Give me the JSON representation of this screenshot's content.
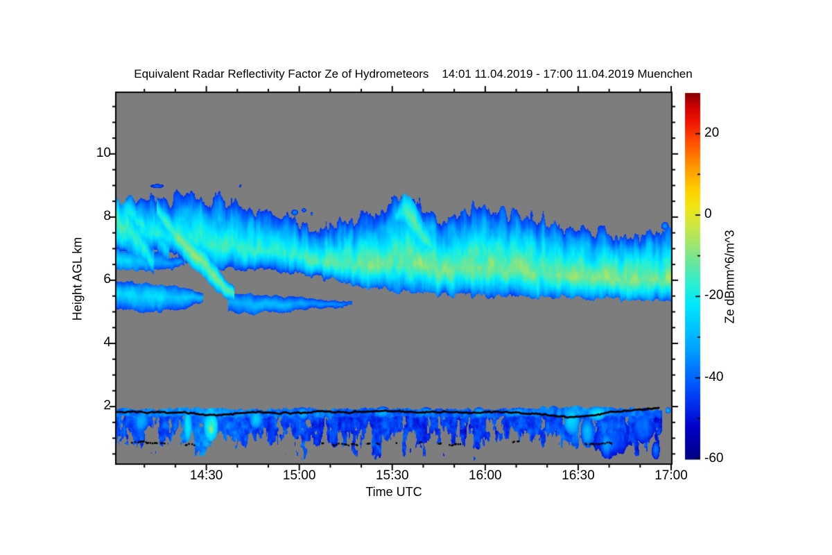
{
  "chart_data": {
    "type": "heatmap",
    "title": "Equivalent Radar Reflectivity Factor Ze of Hydrometeors    14:01 11.04.2019 - 17:00 11.04.2019 Muenchen",
    "station": "Muenchen",
    "date": "11.04.2019",
    "time_start": "14:01",
    "time_end": "17:00",
    "axes": {
      "x": {
        "label": "Time UTC",
        "tick_labels": [
          "14:30",
          "15:00",
          "15:30",
          "16:00",
          "16:30",
          "17:00"
        ],
        "minor_tick_minutes": 10
      },
      "y": {
        "label": "Height AGL km",
        "tick_values": [
          2,
          4,
          6,
          8,
          10
        ],
        "minor_tick_km": 0.5,
        "range_km": [
          0.2,
          11.93
        ]
      },
      "colorbar": {
        "label": "Ze dBmm^6/m^3",
        "tick_values": [
          20,
          0,
          -20,
          -40,
          -60
        ],
        "minor_tick_db": 10,
        "range_db": [
          -60,
          30
        ]
      }
    },
    "colors": {
      "page_bg": "#ffffff",
      "plot_bg": "#7d7d7d",
      "frame": "#000000",
      "text": "#000000",
      "colormap": [
        [
          -60,
          "#000082"
        ],
        [
          -52,
          "#0000c8"
        ],
        [
          -46,
          "#0032f0"
        ],
        [
          -40,
          "#0064ff"
        ],
        [
          -33,
          "#00a0ff"
        ],
        [
          -27,
          "#00c8ff"
        ],
        [
          -22,
          "#00e6ff"
        ],
        [
          -17,
          "#28f0d2"
        ],
        [
          -12,
          "#64e6a0"
        ],
        [
          -7,
          "#a0e66e"
        ],
        [
          -2,
          "#d2e63c"
        ],
        [
          2,
          "#f0e614"
        ],
        [
          6,
          "#ffd200"
        ],
        [
          12,
          "#ff9600"
        ],
        [
          18,
          "#ff5000"
        ],
        [
          23,
          "#f01400"
        ],
        [
          27,
          "#c80000"
        ],
        [
          30,
          "#820000"
        ]
      ]
    },
    "layers": [
      {
        "name": "main-cirrus-band",
        "kind": "band",
        "seed": 11,
        "core_pos": 0.3,
        "fade_up": 36,
        "fade_dn": 30,
        "p": 1.35,
        "vnoise": 8,
        "edge_noise": [
          0.45,
          0.18
        ],
        "nscale": [
          2.2,
          0.55
        ],
        "min": -46,
        "pts": [
          [
            0,
            6.9,
            8.4,
            -19
          ],
          [
            6,
            7.0,
            8.7,
            -19
          ],
          [
            12,
            6.9,
            8.95,
            -19
          ],
          [
            20,
            6.7,
            8.85,
            -18
          ],
          [
            26,
            6.5,
            8.8,
            -15
          ],
          [
            32,
            6.35,
            8.75,
            -15
          ],
          [
            40,
            6.35,
            8.55,
            -16
          ],
          [
            48,
            6.3,
            8.4,
            -17
          ],
          [
            55,
            6.25,
            8.15,
            -17
          ],
          [
            62,
            6.15,
            7.85,
            -15
          ],
          [
            70,
            6.0,
            7.9,
            -13
          ],
          [
            80,
            5.8,
            8.05,
            -12
          ],
          [
            88,
            5.68,
            8.3,
            -11
          ],
          [
            94,
            5.62,
            8.8,
            -10
          ],
          [
            100,
            5.6,
            8.45,
            -11
          ],
          [
            104,
            5.58,
            7.95,
            -12
          ],
          [
            110,
            5.55,
            8.1,
            -11
          ],
          [
            116,
            5.52,
            8.35,
            -10
          ],
          [
            122,
            5.5,
            8.15,
            -11
          ],
          [
            130,
            5.5,
            8.1,
            -10
          ],
          [
            138,
            5.47,
            7.9,
            -11
          ],
          [
            146,
            5.45,
            7.7,
            -10
          ],
          [
            154,
            5.42,
            7.6,
            -10
          ],
          [
            162,
            5.4,
            7.45,
            -9
          ],
          [
            170,
            5.38,
            7.3,
            -9
          ],
          [
            179,
            5.38,
            7.6,
            -9
          ]
        ]
      },
      {
        "name": "spike-streak",
        "kind": "band",
        "seed": 61,
        "core_pos": 0.5,
        "fade_up": 18,
        "fade_dn": 18,
        "p": 1.3,
        "vnoise": 5,
        "edge_noise": [
          0.15,
          0.1
        ],
        "nscale": [
          1.5,
          0.4
        ],
        "min": -44,
        "pts": [
          [
            90,
            7.6,
            8.4,
            -26
          ],
          [
            93,
            7.8,
            8.75,
            -14
          ],
          [
            96,
            7.3,
            8.5,
            -12
          ],
          [
            99,
            6.9,
            7.9,
            -14
          ],
          [
            103,
            6.5,
            7.3,
            -18
          ]
        ]
      },
      {
        "name": "fall-streak",
        "kind": "band",
        "seed": 21,
        "core_pos": 0.5,
        "fade_up": 24,
        "fade_dn": 24,
        "p": 1.4,
        "vnoise": 5,
        "edge_noise": [
          0.15,
          0.12
        ],
        "nscale": [
          1.8,
          0.4
        ],
        "min": -45,
        "pts": [
          [
            13,
            7.9,
            8.6,
            -18
          ],
          [
            18,
            7.1,
            8.0,
            -13
          ],
          [
            23,
            6.55,
            7.5,
            -9
          ],
          [
            28,
            6.1,
            7.0,
            -8
          ],
          [
            32,
            5.7,
            6.5,
            -10
          ],
          [
            35,
            5.45,
            6.05,
            -13
          ],
          [
            38,
            5.35,
            5.75,
            -16
          ]
        ]
      },
      {
        "name": "hook-filament-1",
        "kind": "band",
        "seed": 31,
        "core_pos": 0.45,
        "fade_up": 20,
        "fade_dn": 20,
        "p": 1.3,
        "vnoise": 6,
        "edge_noise": [
          0.25,
          0.2
        ],
        "nscale": [
          1.2,
          0.3
        ],
        "min": -44,
        "pts": [
          [
            0,
            7.2,
            8.6,
            -14
          ],
          [
            5,
            6.9,
            8.2,
            -15
          ],
          [
            9,
            6.5,
            7.6,
            -17
          ],
          [
            12,
            6.3,
            7.0,
            -21
          ]
        ]
      },
      {
        "name": "hook-filament-2",
        "kind": "band",
        "seed": 32,
        "core_pos": 0.5,
        "fade_up": 20,
        "fade_dn": 20,
        "p": 1.3,
        "vnoise": 6,
        "edge_noise": [
          0.25,
          0.2
        ],
        "nscale": [
          1.2,
          0.3
        ],
        "min": -44,
        "pts": [
          [
            3,
            7.8,
            8.7,
            -18
          ],
          [
            8,
            7.3,
            8.3,
            -19
          ],
          [
            13,
            6.9,
            7.8,
            -21
          ],
          [
            17,
            6.6,
            7.3,
            -25
          ]
        ]
      },
      {
        "name": "mid-left-band",
        "kind": "band",
        "seed": 33,
        "core_pos": 0.5,
        "fade_up": 13,
        "fade_dn": 13,
        "p": 1.3,
        "vnoise": 5,
        "edge_noise": [
          0.15,
          0.12
        ],
        "nscale": [
          2.0,
          0.3
        ],
        "min": -44,
        "pts": [
          [
            0,
            6.35,
            6.95,
            -25
          ],
          [
            8,
            6.3,
            6.9,
            -27
          ],
          [
            16,
            6.35,
            6.8,
            -31
          ],
          [
            22,
            6.4,
            6.7,
            -35
          ]
        ]
      },
      {
        "name": "lower-strip-a",
        "kind": "band",
        "seed": 41,
        "core_pos": 0.55,
        "fade_up": 16,
        "fade_dn": 18,
        "p": 1.3,
        "vnoise": 6,
        "edge_noise": [
          0.12,
          0.1
        ],
        "nscale": [
          2.5,
          0.35
        ],
        "min": -45,
        "pts": [
          [
            0,
            5.1,
            5.95,
            -26
          ],
          [
            6,
            5.05,
            5.9,
            -24
          ],
          [
            12,
            5.0,
            5.85,
            -25
          ],
          [
            18,
            5.05,
            5.8,
            -26
          ],
          [
            24,
            5.15,
            5.7,
            -28
          ],
          [
            28,
            5.3,
            5.6,
            -32
          ]
        ]
      },
      {
        "name": "lower-strip-b",
        "kind": "band",
        "seed": 42,
        "core_pos": 0.5,
        "fade_up": 13,
        "fade_dn": 13,
        "p": 1.3,
        "vnoise": 5,
        "edge_noise": [
          0.1,
          0.1
        ],
        "nscale": [
          2.5,
          0.3
        ],
        "min": -45,
        "pts": [
          [
            36,
            5.0,
            5.6,
            -30
          ],
          [
            44,
            4.95,
            5.55,
            -28
          ],
          [
            52,
            5.0,
            5.5,
            -30
          ],
          [
            60,
            5.05,
            5.45,
            -32
          ],
          [
            68,
            5.1,
            5.4,
            -36
          ],
          [
            76,
            5.15,
            5.35,
            -40
          ]
        ]
      },
      {
        "name": "boundary-layer",
        "kind": "speckle",
        "seed": 51,
        "vnoise": 9,
        "nscale": [
          1.2,
          0.2
        ],
        "dense_above": 1.5,
        "min": -57,
        "pts": [
          [
            0,
            0.25,
            1.93,
            -42
          ],
          [
            10,
            0.3,
            1.9,
            -43
          ],
          [
            20,
            0.25,
            1.95,
            -40
          ],
          [
            30,
            0.3,
            1.95,
            -36
          ],
          [
            40,
            0.3,
            1.9,
            -42
          ],
          [
            50,
            0.28,
            1.93,
            -44
          ],
          [
            60,
            0.3,
            1.95,
            -44
          ],
          [
            70,
            0.3,
            1.9,
            -45
          ],
          [
            80,
            0.3,
            1.93,
            -46
          ],
          [
            90,
            0.28,
            1.95,
            -44
          ],
          [
            100,
            0.3,
            1.9,
            -45
          ],
          [
            110,
            0.3,
            1.93,
            -46
          ],
          [
            120,
            0.3,
            1.9,
            -45
          ],
          [
            130,
            0.3,
            1.95,
            -44
          ],
          [
            140,
            0.3,
            1.97,
            -43
          ],
          [
            148,
            0.3,
            2.0,
            -40
          ],
          [
            156,
            0.3,
            1.97,
            -41
          ],
          [
            164,
            0.3,
            1.95,
            -43
          ],
          [
            170,
            0.3,
            1.9,
            -44
          ],
          [
            176,
            0.35,
            1.88,
            -46
          ]
        ]
      }
    ],
    "blobs": [
      [
        30.5,
        1.35,
        2.2,
        0.45,
        -16
      ],
      [
        30.5,
        1.28,
        1.0,
        0.18,
        -7
      ],
      [
        23,
        1.4,
        1.3,
        0.5,
        -22
      ],
      [
        8,
        1.55,
        2.5,
        0.35,
        -30
      ],
      [
        45,
        1.6,
        2.0,
        0.3,
        -27
      ],
      [
        60,
        1.78,
        2.0,
        0.2,
        -30
      ],
      [
        86,
        1.82,
        2.5,
        0.18,
        -30
      ],
      [
        100,
        1.83,
        2.0,
        0.15,
        -32
      ],
      [
        117,
        1.8,
        2.0,
        0.18,
        -30
      ],
      [
        130,
        1.82,
        2.0,
        0.15,
        -30
      ],
      [
        147,
        1.55,
        2.5,
        0.45,
        -24
      ],
      [
        152,
        1.2,
        2.2,
        0.5,
        -30
      ],
      [
        155,
        1.78,
        3.0,
        0.22,
        -22
      ],
      [
        158,
        0.8,
        2.0,
        0.45,
        -34
      ],
      [
        160,
        1.0,
        8.0,
        0.8,
        -42
      ],
      [
        170,
        1.4,
        4.0,
        0.6,
        -38
      ],
      [
        174,
        0.6,
        1.5,
        0.3,
        -38
      ],
      [
        178,
        1.88,
        0.9,
        0.1,
        -30
      ],
      [
        57.5,
        8.15,
        1.1,
        0.09,
        -36
      ],
      [
        60.5,
        8.22,
        0.8,
        0.07,
        -38
      ],
      [
        63,
        8.1,
        0.5,
        0.06,
        -40
      ],
      [
        40,
        8.98,
        0.5,
        0.06,
        -42
      ],
      [
        13,
        8.98,
        2.5,
        0.08,
        -40
      ],
      [
        89,
        8.6,
        0.45,
        0.06,
        -42
      ],
      [
        177,
        7.72,
        1.2,
        0.12,
        -34
      ]
    ],
    "black_line": {
      "width": 2.8,
      "pts": [
        [
          0,
          1.82
        ],
        [
          6,
          1.84
        ],
        [
          12,
          1.8
        ],
        [
          18,
          1.82
        ],
        [
          24,
          1.8
        ],
        [
          29,
          1.74
        ],
        [
          33,
          1.72
        ],
        [
          38,
          1.78
        ],
        [
          44,
          1.82
        ],
        [
          50,
          1.8
        ],
        [
          56,
          1.79
        ],
        [
          62,
          1.82
        ],
        [
          68,
          1.84
        ],
        [
          74,
          1.82
        ],
        [
          80,
          1.84
        ],
        [
          86,
          1.86
        ],
        [
          92,
          1.84
        ],
        [
          98,
          1.82
        ],
        [
          104,
          1.84
        ],
        [
          110,
          1.82
        ],
        [
          116,
          1.8
        ],
        [
          120,
          1.84
        ],
        [
          126,
          1.82
        ],
        [
          132,
          1.78
        ],
        [
          138,
          1.76
        ],
        [
          142,
          1.7
        ],
        [
          147,
          1.64
        ],
        [
          150,
          1.68
        ],
        [
          154,
          1.74
        ],
        [
          158,
          1.8
        ],
        [
          163,
          1.86
        ],
        [
          168,
          1.9
        ],
        [
          172,
          1.93
        ],
        [
          175,
          1.95
        ]
      ]
    },
    "black_dashes": [
      [
        5,
        16,
        0.85
      ],
      [
        22,
        26,
        0.8
      ],
      [
        66,
        68,
        0.85
      ],
      [
        70,
        78,
        0.8
      ],
      [
        81,
        82,
        0.82
      ],
      [
        84,
        85,
        0.83
      ],
      [
        90,
        91,
        0.85
      ],
      [
        98,
        99,
        0.87
      ],
      [
        104,
        111,
        0.8
      ],
      [
        116,
        117,
        0.84
      ],
      [
        128,
        130,
        0.9
      ],
      [
        151,
        160,
        0.82
      ]
    ]
  }
}
